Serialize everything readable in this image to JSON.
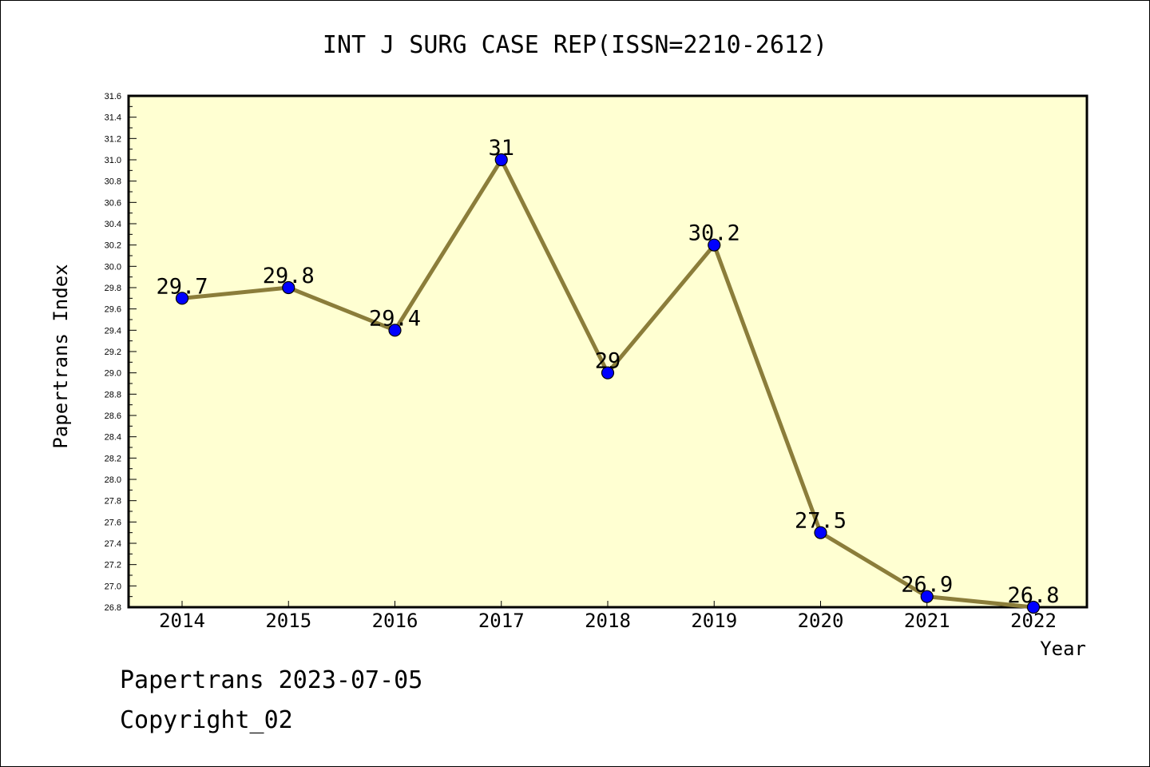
{
  "chart_data": {
    "type": "line",
    "title": "INT J SURG CASE REP(ISSN=2210-2612)",
    "xlabel": "Year",
    "ylabel": "Papertrans Index",
    "categories": [
      "2014",
      "2015",
      "2016",
      "2017",
      "2018",
      "2019",
      "2020",
      "2021",
      "2022"
    ],
    "series": [
      {
        "values": [
          29.7,
          29.8,
          29.4,
          31.0,
          29.0,
          30.2,
          27.5,
          26.9,
          26.8
        ],
        "data_labels": [
          "29.7",
          "29.8",
          "29.4",
          "31",
          "29",
          "30.2",
          "27.5",
          "26.9",
          "26.8"
        ]
      }
    ],
    "ylim": [
      26.8,
      31.6
    ],
    "yticks": [
      "26.8",
      "27.0",
      "27.2",
      "27.4",
      "27.6",
      "27.8",
      "28.0",
      "28.2",
      "28.4",
      "28.6",
      "28.8",
      "29.0",
      "29.2",
      "29.4",
      "29.6",
      "29.8",
      "30.0",
      "30.2",
      "30.4",
      "30.6",
      "30.8",
      "31.0",
      "31.2",
      "31.4",
      "31.6"
    ],
    "grid": false,
    "colors": {
      "plot_background": "#ffffd2",
      "line": "#8b7d3a",
      "marker": "#0000ff"
    }
  },
  "footer": {
    "line1": "Papertrans 2023-07-05",
    "line2": "Copyright_02"
  }
}
